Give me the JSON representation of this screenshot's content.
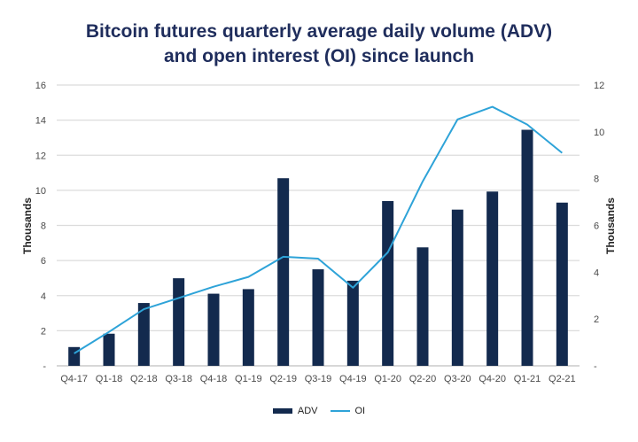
{
  "chart_data": {
    "type": "bar",
    "title_lines": [
      "Bitcoin futures quarterly average daily volume (ADV)",
      "and open interest (OI) since launch"
    ],
    "categories": [
      "Q4-17",
      "Q1-18",
      "Q2-18",
      "Q3-18",
      "Q4-18",
      "Q1-19",
      "Q2-19",
      "Q3-19",
      "Q4-19",
      "Q1-20",
      "Q2-20",
      "Q3-20",
      "Q4-20",
      "Q1-21",
      "Q2-21"
    ],
    "series": [
      {
        "name": "ADV",
        "type": "bar",
        "axis": "left",
        "color": "#132a4e",
        "values": [
          1.07,
          1.83,
          3.58,
          4.99,
          4.11,
          4.37,
          10.69,
          5.5,
          4.85,
          9.39,
          6.75,
          8.9,
          9.93,
          13.45,
          9.3
        ]
      },
      {
        "name": "OI",
        "type": "line",
        "axis": "right",
        "color": "#2ea3d8",
        "values": [
          0.53,
          1.45,
          2.42,
          2.9,
          3.38,
          3.8,
          4.66,
          4.58,
          3.34,
          4.85,
          7.88,
          10.53,
          11.07,
          10.31,
          9.1
        ]
      }
    ],
    "ylabel": "Thousands",
    "y2label": "Thousands",
    "ylim": [
      0,
      16
    ],
    "y2lim": [
      0,
      12
    ],
    "yticks": [
      "-",
      "2",
      "4",
      "6",
      "8",
      "10",
      "12",
      "14",
      "16"
    ],
    "y2ticks": [
      "-",
      "2",
      "4",
      "6",
      "8",
      "10",
      "12"
    ],
    "grid": true,
    "legend": {
      "position": "bottom-center",
      "entries": [
        "ADV",
        "OI"
      ]
    }
  }
}
